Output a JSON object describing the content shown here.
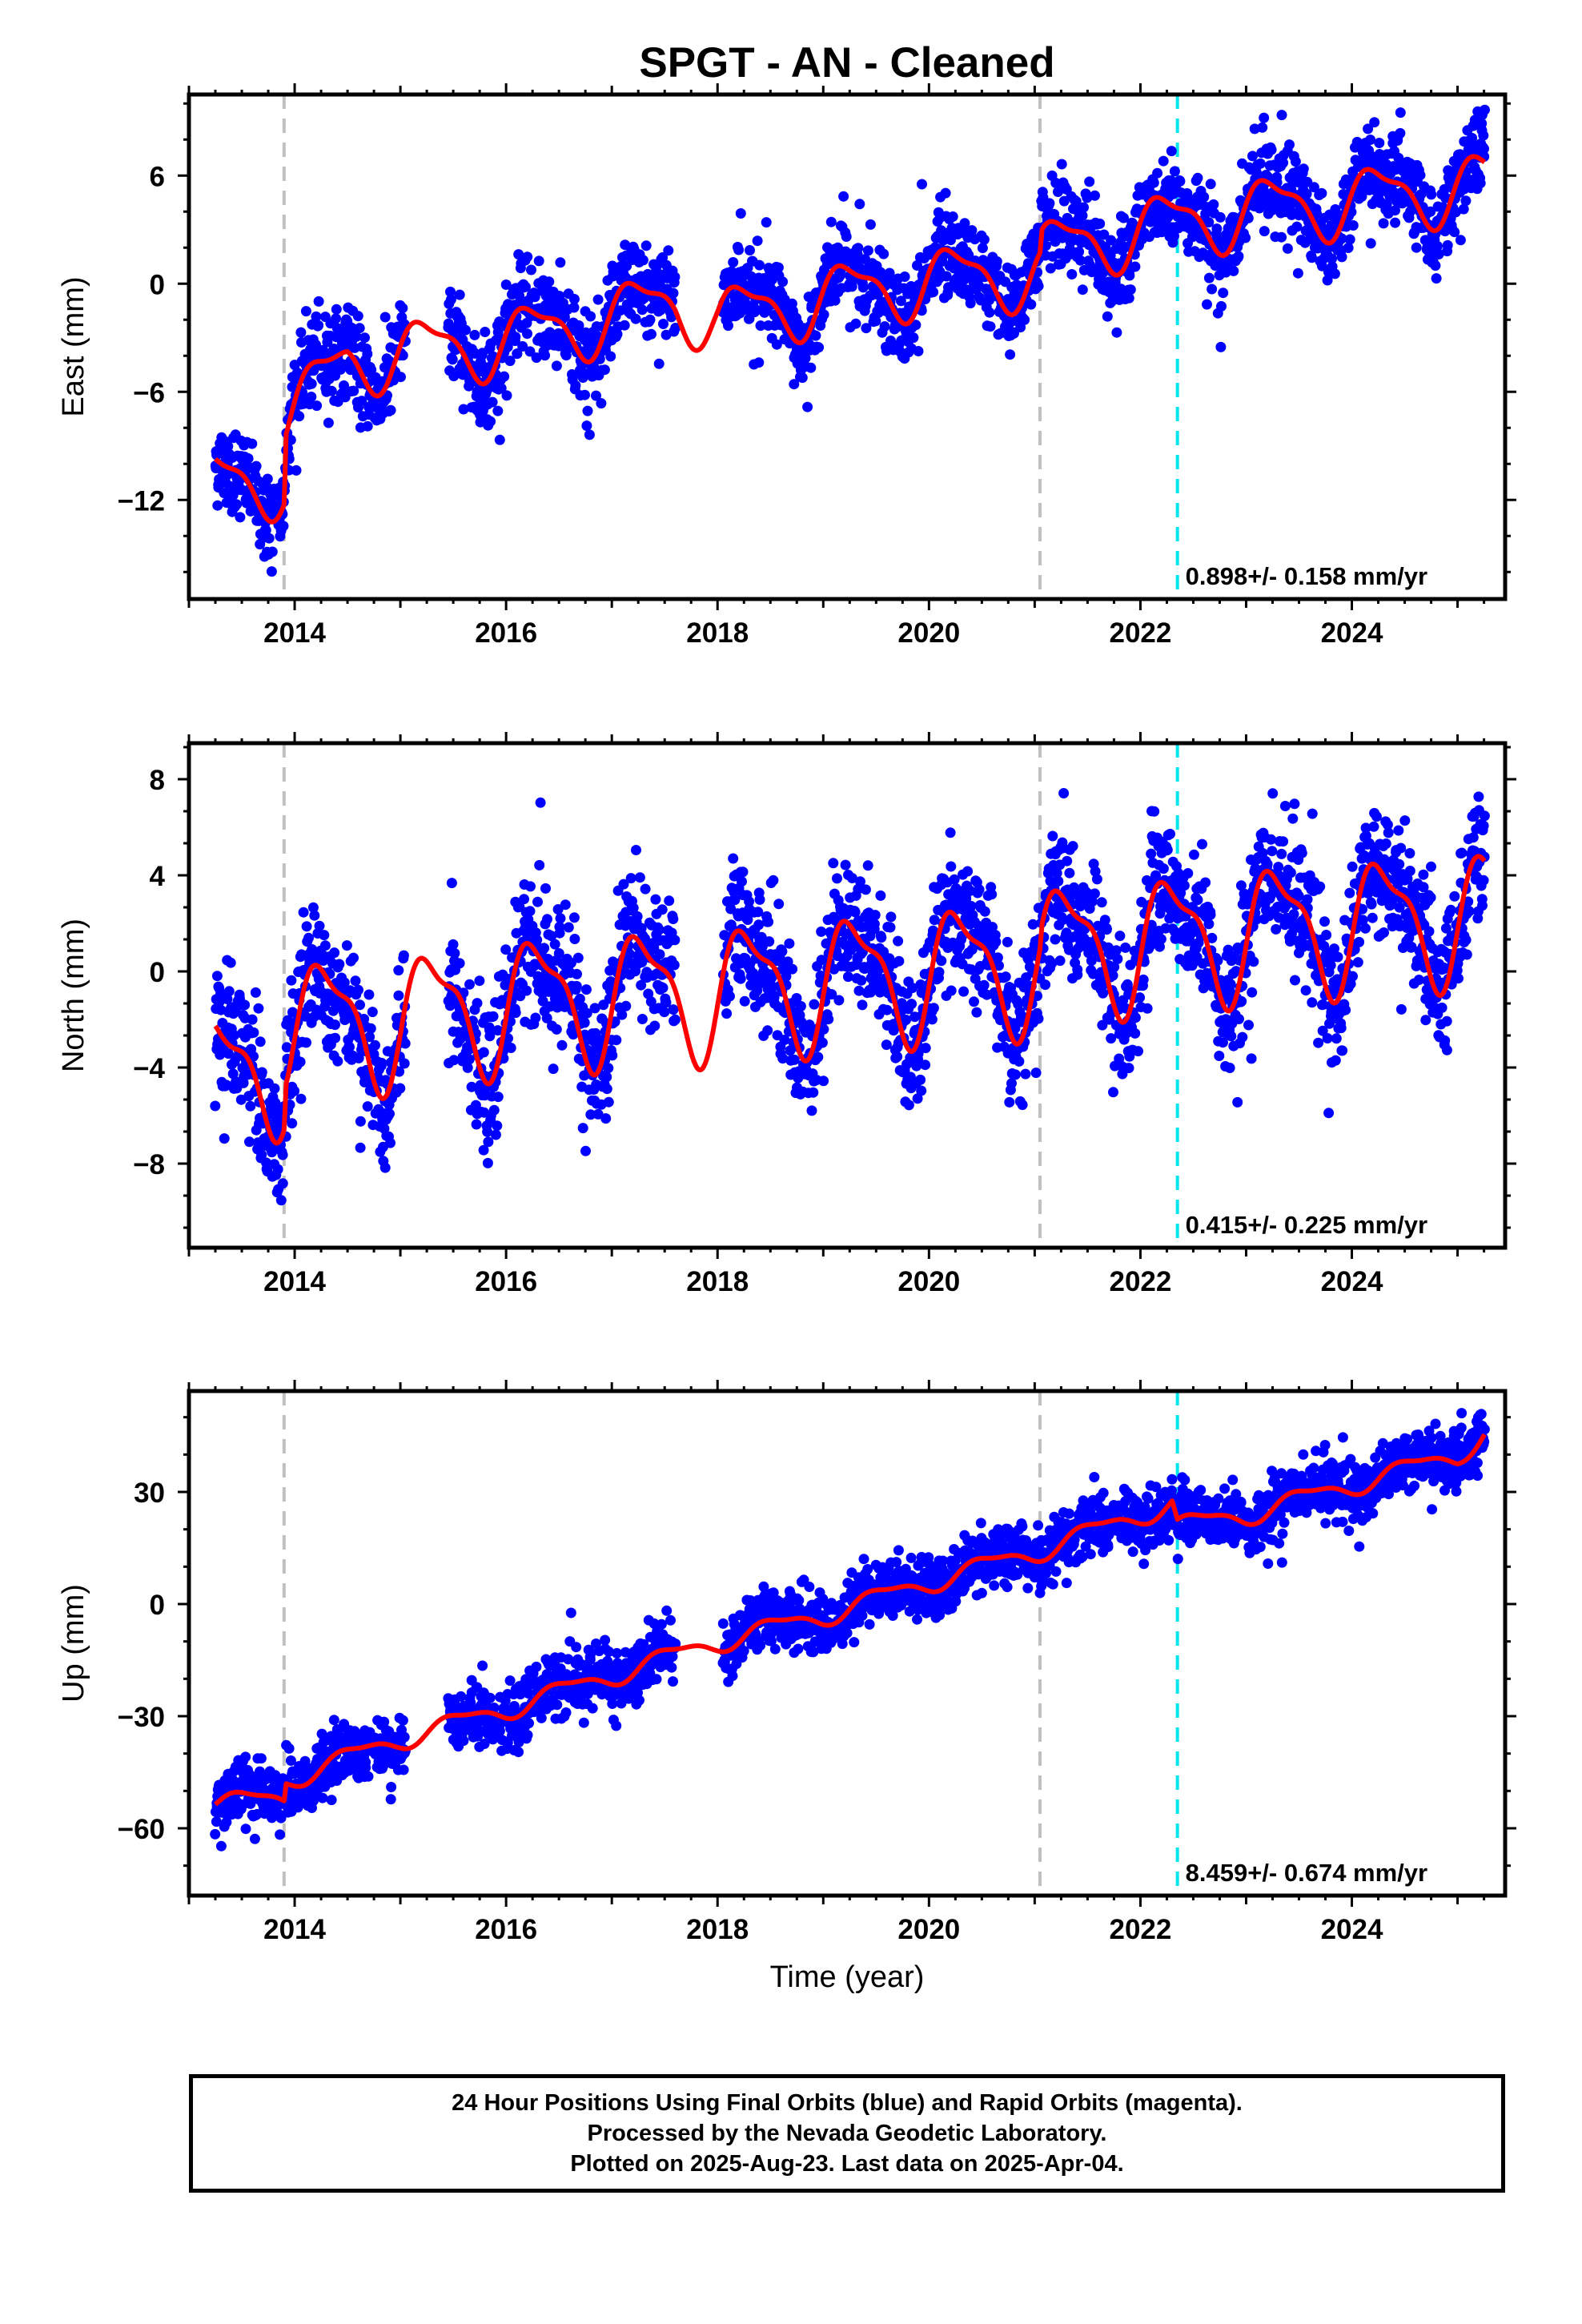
{
  "title": "SPGT  - AN - Cleaned",
  "footer": {
    "line1": "24 Hour Positions Using Final Orbits (blue) and Rapid Orbits (magenta).",
    "line2": "Processed by the Nevada Geodetic Laboratory.",
    "line3": "Plotted on 2025-Aug-23. Last data on 2025-Apr-04."
  },
  "colors": {
    "points": "#0000ff",
    "model": "#ff0000",
    "gray_lines": "#c0c0c0",
    "cyan_line": "#00e5ee"
  },
  "chart_data": [
    {
      "type": "scatter",
      "title": "SPGT  - AN - Cleaned",
      "ylabel": "East (mm)",
      "xlabel": "",
      "xlim": [
        2013.0,
        2025.45
      ],
      "ylim": [
        -17.5,
        10.5
      ],
      "xticks": [
        2014,
        2016,
        2018,
        2020,
        2022,
        2024
      ],
      "yticks": [
        -12,
        -6,
        0,
        6
      ],
      "ytick_labels": [
        "−12",
        "−6",
        "0",
        "6"
      ],
      "vertical_lines": {
        "gray_dashed": [
          2013.9,
          2021.05
        ],
        "cyan_dashed": [
          2022.35
        ]
      },
      "rate_label": "0.898+/- 0.158 mm/yr",
      "data_start": 2013.25,
      "data_end": 2025.26,
      "gaps": [
        [
          2015.05,
          2015.45
        ],
        [
          2017.6,
          2018.05
        ]
      ],
      "series": [
        {
          "name": "Final Orbits",
          "style": "points"
        },
        {
          "name": "Model",
          "style": "line"
        }
      ],
      "trend": [
        [
          2013.3,
          -11.0
        ],
        [
          2013.9,
          -11.0
        ],
        [
          2013.92,
          -7.4
        ],
        [
          2014.5,
          -4.2
        ],
        [
          2016.0,
          -3.2
        ],
        [
          2017.6,
          -1.0
        ],
        [
          2018.0,
          -2.0
        ],
        [
          2019.0,
          -0.8
        ],
        [
          2020.0,
          0.2
        ],
        [
          2021.05,
          0.6
        ],
        [
          2021.07,
          1.7
        ],
        [
          2022.0,
          3.0
        ],
        [
          2023.0,
          4.0
        ],
        [
          2024.0,
          4.6
        ],
        [
          2025.26,
          5.5
        ]
      ],
      "seasonal_amplitude": 1.7,
      "seasonal_phase": 0.0,
      "scatter_sigma": 1.2
    },
    {
      "type": "scatter",
      "ylabel": "North (mm)",
      "xlabel": "",
      "xlim": [
        2013.0,
        2025.45
      ],
      "ylim": [
        -11.5,
        9.5
      ],
      "xticks": [
        2014,
        2016,
        2018,
        2020,
        2022,
        2024
      ],
      "yticks": [
        -8,
        -4,
        0,
        4,
        8
      ],
      "ytick_labels": [
        "−8",
        "−4",
        "0",
        "4",
        "8"
      ],
      "vertical_lines": {
        "gray_dashed": [
          2013.9,
          2021.05
        ],
        "cyan_dashed": [
          2022.35
        ]
      },
      "rate_label": "0.415+/- 0.225 mm/yr",
      "data_start": 2013.25,
      "data_end": 2025.26,
      "gaps": [
        [
          2015.05,
          2015.45
        ],
        [
          2017.6,
          2018.05
        ]
      ],
      "series": [
        {
          "name": "Final Orbits",
          "style": "points"
        },
        {
          "name": "Model",
          "style": "line"
        }
      ],
      "trend": [
        [
          2013.3,
          -4.5
        ],
        [
          2013.9,
          -3.8
        ],
        [
          2013.92,
          -2.2
        ],
        [
          2015.0,
          -2.0
        ],
        [
          2016.0,
          -1.3
        ],
        [
          2017.0,
          -1.0
        ],
        [
          2018.0,
          -0.8
        ],
        [
          2019.0,
          -0.4
        ],
        [
          2020.0,
          0.0
        ],
        [
          2021.05,
          0.3
        ],
        [
          2021.07,
          0.9
        ],
        [
          2022.0,
          1.2
        ],
        [
          2023.0,
          1.7
        ],
        [
          2024.0,
          2.0
        ],
        [
          2025.26,
          2.4
        ]
      ],
      "seasonal_amplitude": 2.5,
      "seasonal_phase": 0.05,
      "scatter_sigma": 1.4
    },
    {
      "type": "scatter",
      "ylabel": "Up (mm)",
      "xlabel": "Time (year)",
      "xlim": [
        2013.0,
        2025.45
      ],
      "ylim": [
        -78,
        57
      ],
      "xticks": [
        2014,
        2016,
        2018,
        2020,
        2022,
        2024
      ],
      "yticks": [
        -60,
        -30,
        0,
        30
      ],
      "ytick_labels": [
        "−60",
        "−30",
        "0",
        "30"
      ],
      "vertical_lines": {
        "gray_dashed": [
          2013.9,
          2021.05
        ],
        "cyan_dashed": [
          2022.35
        ]
      },
      "rate_label": "8.459+/- 0.674 mm/yr",
      "data_start": 2013.25,
      "data_end": 2025.26,
      "gaps": [
        [
          2015.05,
          2015.45
        ],
        [
          2017.6,
          2018.05
        ]
      ],
      "series": [
        {
          "name": "Final Orbits",
          "style": "points"
        },
        {
          "name": "Model",
          "style": "line"
        }
      ],
      "trend": [
        [
          2013.3,
          -53.0
        ],
        [
          2013.9,
          -52.0
        ],
        [
          2013.92,
          -47.0
        ],
        [
          2015.0,
          -36.0
        ],
        [
          2016.0,
          -28.0
        ],
        [
          2017.0,
          -19.0
        ],
        [
          2018.0,
          -10.0
        ],
        [
          2019.0,
          -3.0
        ],
        [
          2020.0,
          6.0
        ],
        [
          2021.0,
          14.0
        ],
        [
          2022.3,
          27.0
        ],
        [
          2022.35,
          21.0
        ],
        [
          2023.0,
          24.0
        ],
        [
          2024.0,
          32.0
        ],
        [
          2025.0,
          40.0
        ],
        [
          2025.26,
          46.0
        ]
      ],
      "seasonal_amplitude": 2.5,
      "seasonal_phase": 0.3,
      "scatter_sigma": 4.0
    }
  ]
}
